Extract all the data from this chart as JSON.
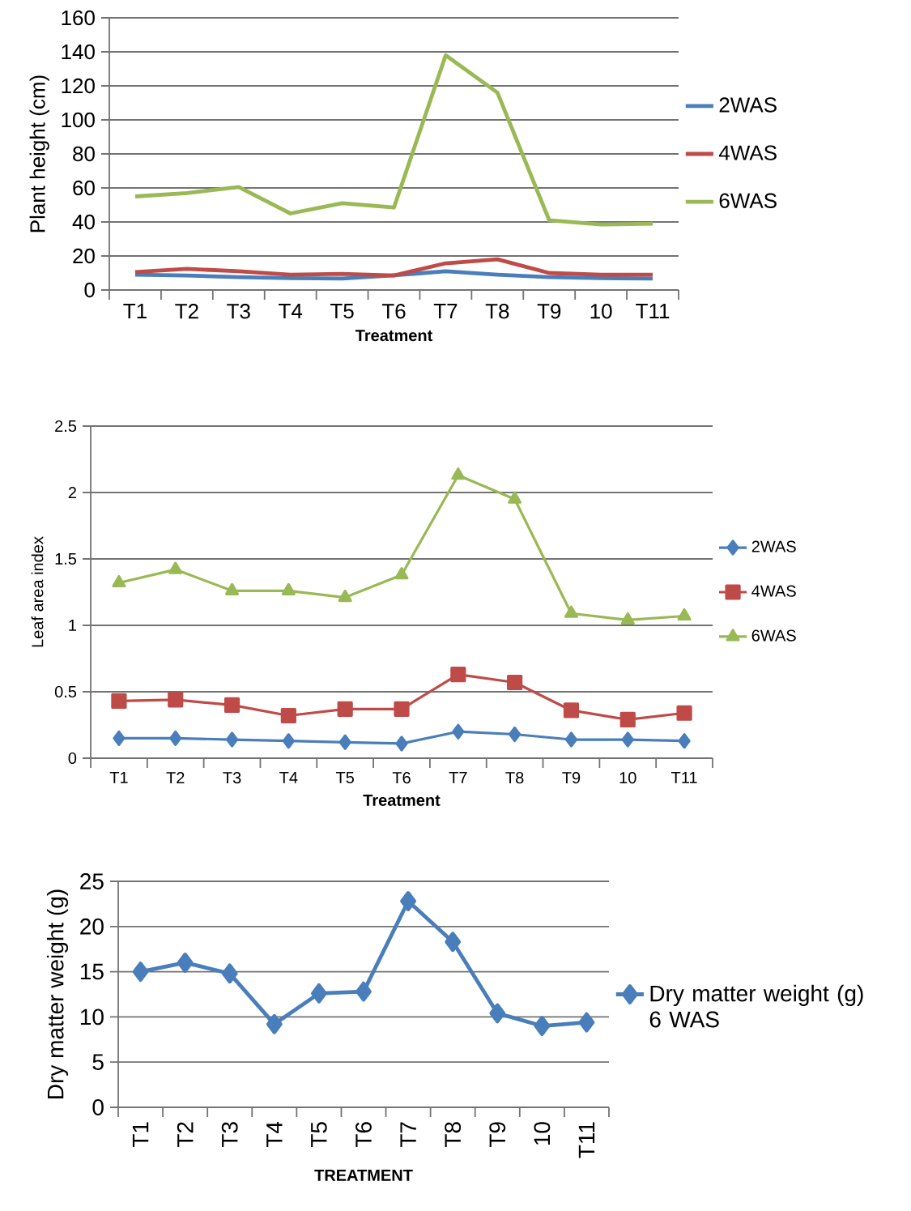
{
  "chart_data": [
    {
      "type": "line",
      "xlabel": "Treatment",
      "ylabel": "Plant height (cm)",
      "categories": [
        "T1",
        "T2",
        "T3",
        "T4",
        "T5",
        "T6",
        "T7",
        "T8",
        "T9",
        "10",
        "T11"
      ],
      "ylim": [
        0,
        160
      ],
      "yticks": [
        0,
        20,
        40,
        60,
        80,
        100,
        120,
        140,
        160
      ],
      "grid": "y",
      "legend": "right",
      "marker": "none",
      "series": [
        {
          "name": "2WAS",
          "color": "#4a7ebb",
          "values": [
            9,
            8.5,
            7.6,
            7,
            6.7,
            8.6,
            11,
            9,
            7.6,
            7,
            6.7
          ]
        },
        {
          "name": "4WAS",
          "color": "#be4b48",
          "values": [
            10.5,
            12.4,
            11,
            9,
            9.5,
            8.5,
            15.7,
            18,
            10,
            9,
            9
          ]
        },
        {
          "name": "6WAS",
          "color": "#98b954",
          "values": [
            55,
            57,
            60.5,
            45,
            51,
            48.5,
            138,
            116,
            41,
            38.5,
            39
          ]
        }
      ]
    },
    {
      "type": "line",
      "xlabel": "Treatment",
      "ylabel": "Leaf area index",
      "categories": [
        "T1",
        "T2",
        "T3",
        "T4",
        "T5",
        "T6",
        "T7",
        "T8",
        "T9",
        "10",
        "T11"
      ],
      "ylim": [
        0,
        2.5
      ],
      "yticks": [
        0,
        0.5,
        1,
        1.5,
        2,
        2.5
      ],
      "grid": "y",
      "legend": "right",
      "series": [
        {
          "name": "2WAS",
          "color": "#4a7ebb",
          "marker": "diamond",
          "values": [
            0.15,
            0.15,
            0.14,
            0.13,
            0.12,
            0.11,
            0.2,
            0.18,
            0.14,
            0.14,
            0.13
          ]
        },
        {
          "name": "4WAS",
          "color": "#be4b48",
          "marker": "square",
          "values": [
            0.43,
            0.44,
            0.4,
            0.32,
            0.37,
            0.37,
            0.63,
            0.57,
            0.36,
            0.29,
            0.34
          ]
        },
        {
          "name": "6WAS",
          "color": "#98b954",
          "marker": "triangle",
          "values": [
            1.32,
            1.42,
            1.26,
            1.26,
            1.21,
            1.38,
            2.13,
            1.95,
            1.09,
            1.04,
            1.07
          ]
        }
      ]
    },
    {
      "type": "line",
      "xlabel": "TREATMENT",
      "ylabel": "Dry matter weight (g)",
      "categories": [
        "T1",
        "T2",
        "T3",
        "T4",
        "T5",
        "T6",
        "T7",
        "T8",
        "T9",
        "10",
        "T11"
      ],
      "ylim": [
        0,
        25
      ],
      "yticks": [
        0,
        5,
        10,
        15,
        20,
        25
      ],
      "grid": "y",
      "legend": "right",
      "marker": "diamond",
      "series": [
        {
          "name": "Dry matter weight (g) 6 WAS",
          "color": "#4a7ebb",
          "values": [
            15,
            16,
            14.8,
            9.2,
            12.6,
            12.8,
            22.8,
            18.3,
            10.4,
            9,
            9.4
          ]
        }
      ]
    }
  ]
}
